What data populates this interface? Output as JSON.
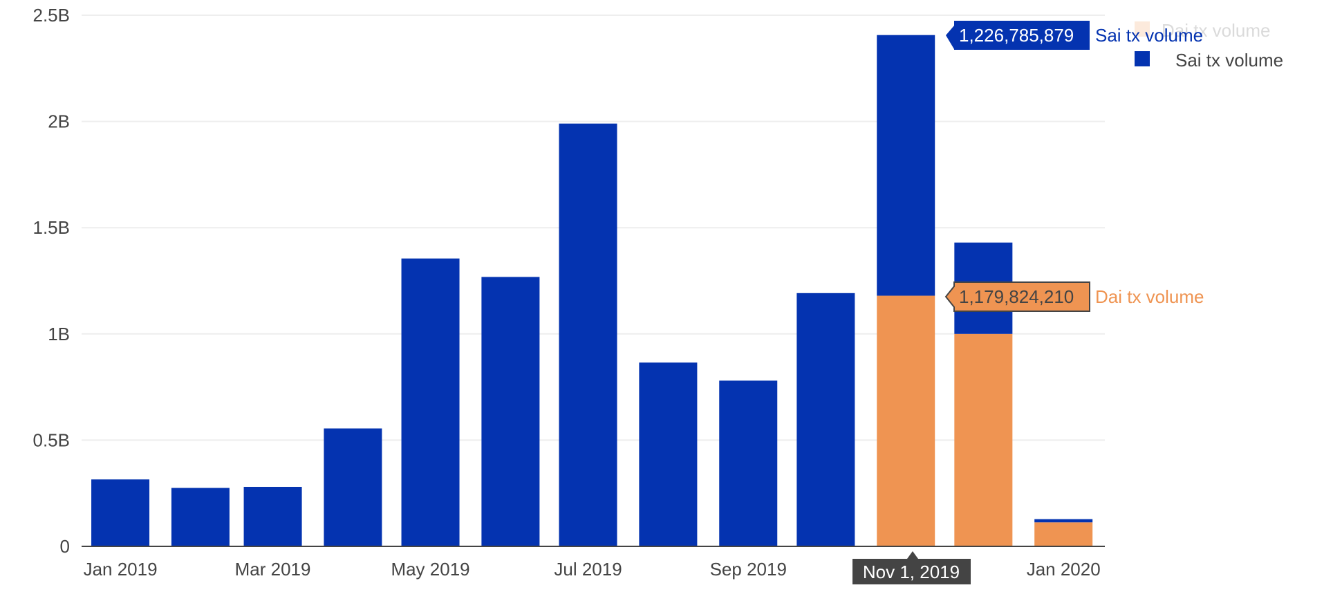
{
  "chart_data": {
    "type": "bar",
    "barmode": "stack",
    "x": [
      "2019-01-01",
      "2019-02-01",
      "2019-03-01",
      "2019-04-01",
      "2019-05-01",
      "2019-06-01",
      "2019-07-01",
      "2019-08-01",
      "2019-09-01",
      "2019-10-01",
      "2019-11-01",
      "2019-12-01",
      "2020-01-01"
    ],
    "series": [
      {
        "name": "Dai tx volume",
        "color": "#ef9452",
        "values": [
          0,
          0,
          0,
          0,
          0,
          0,
          0,
          0,
          0,
          0,
          1179824210,
          1000000000,
          113000000
        ]
      },
      {
        "name": "Sai tx volume",
        "color": "#0433b0",
        "values": [
          315000000,
          275000000,
          280000000,
          555000000,
          1355000000,
          1268000000,
          1990000000,
          865000000,
          780000000,
          1192000000,
          1226785879,
          430000000,
          15000000
        ]
      }
    ],
    "ylim": [
      0,
      2500000000
    ],
    "y_ticks": [
      "0",
      "0.5B",
      "1B",
      "1.5B",
      "2B",
      "2.5B"
    ],
    "x_ticks": [
      "Jan 2019",
      "Mar 2019",
      "May 2019",
      "Jul 2019",
      "Sep 2019",
      "Jan 2020"
    ],
    "grid": true,
    "legend_position": "top-right",
    "hover": {
      "x_label": "Nov 1, 2019",
      "sai_value": "1,226,785,879",
      "sai_name": "Sai tx volume",
      "dai_value": "1,179,824,210",
      "dai_name": "Dai tx volume"
    }
  }
}
